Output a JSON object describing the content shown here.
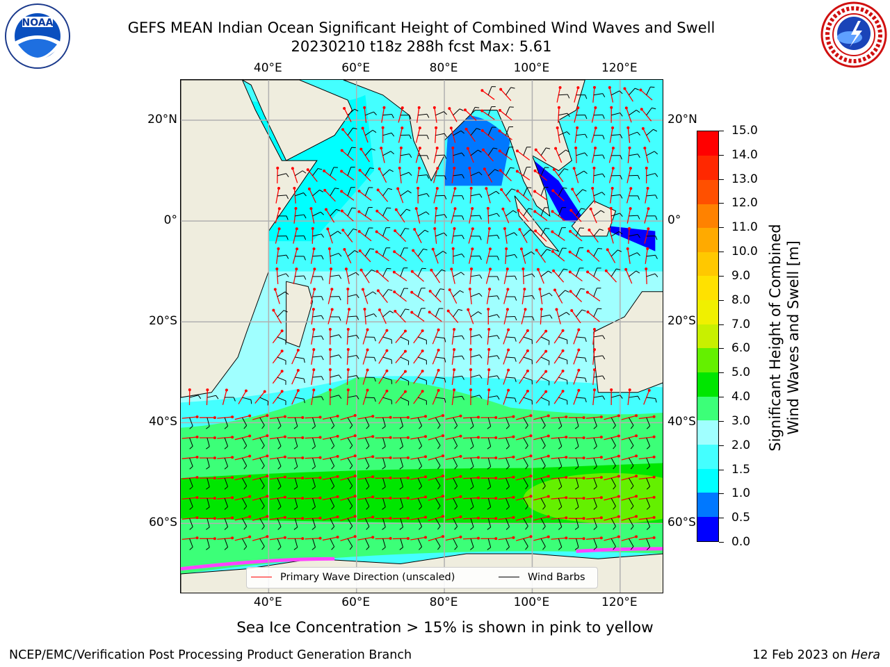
{
  "header": {
    "title_line1": "GEFS MEAN Indian Ocean Significant Height of Combined Wind Waves and Swell",
    "title_line2": "20230210 t18z 288h fcst   Max: 5.61"
  },
  "logos": {
    "left": "noaa-logo",
    "right": "nws-logo"
  },
  "map": {
    "lon_labels_top": [
      "40°E",
      "60°E",
      "80°E",
      "100°E",
      "120°E"
    ],
    "lon_labels_bottom": [
      "40°E",
      "60°E",
      "80°E",
      "100°E",
      "120°E"
    ],
    "lat_labels_left": [
      "20°N",
      "0°",
      "20°S",
      "40°S",
      "60°S"
    ],
    "lat_labels_right": [
      "20°N",
      "0°",
      "20°S",
      "40°S",
      "60°S"
    ],
    "lon_values": [
      40,
      60,
      80,
      100,
      120
    ],
    "lat_values": [
      20,
      0,
      -20,
      -40,
      -60
    ],
    "lon_range": [
      20,
      130
    ],
    "lat_range": [
      -74,
      28
    ],
    "grid": true,
    "land_color": "#efedde",
    "sea_ice_color": "#ff44ff"
  },
  "legend": {
    "wave_label": "Primary Wave Direction (unscaled)",
    "wind_label": "Wind Barbs",
    "wave_color": "#ff0000",
    "wind_color": "#000000"
  },
  "colorbar": {
    "title_line1": "Significant Height of Combined",
    "title_line2": "Wind Waves and Swell [m]",
    "tick_labels": [
      "0.0",
      "0.5",
      "1.0",
      "1.5",
      "2.0",
      "3.0",
      "4.0",
      "5.0",
      "6.0",
      "7.0",
      "8.0",
      "9.0",
      "10.0",
      "11.0",
      "12.0",
      "13.0",
      "14.0",
      "15.0"
    ],
    "colors": [
      "#0000ff",
      "#0078ff",
      "#00ffff",
      "#44ffff",
      "#a0ffff",
      "#3cff78",
      "#00e600",
      "#64f000",
      "#c8f000",
      "#f0f000",
      "#ffe100",
      "#ffc800",
      "#ffaa00",
      "#ff8200",
      "#ff5000",
      "#ff2800",
      "#ff0000"
    ]
  },
  "caption": "Sea Ice Concentration > 15% is shown in pink to yellow",
  "footer": {
    "left": "NCEP/EMC/Verification Post Processing Product Generation Branch",
    "right_prefix": "12 Feb 2023 on ",
    "right_host": "Hera"
  }
}
